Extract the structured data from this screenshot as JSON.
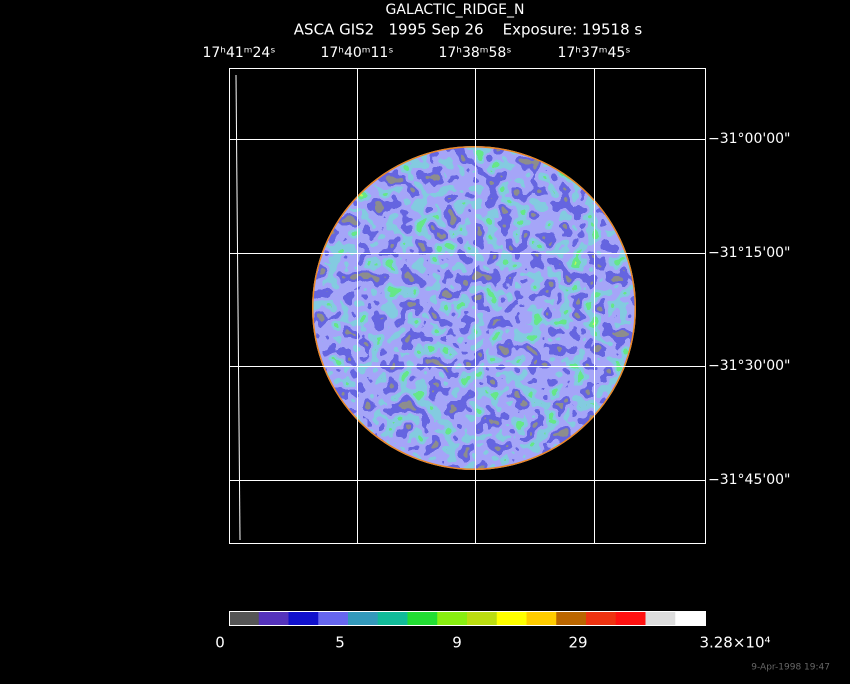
{
  "header": {
    "title": "GALACTIC_RIDGE_N",
    "subtitle": "ASCA GIS2   1995 Sep 26    Exposure: 19518 s"
  },
  "ra_labels": [
    "17ʰ41ᵐ24ˢ",
    "17ʰ40ᵐ11ˢ",
    "17ʰ38ᵐ58ˢ",
    "17ʰ37ᵐ45ˢ"
  ],
  "dec_labels": [
    "−31°00'00\"",
    "−31°15'00\"",
    "−31°30'00\"",
    "−31°45'00\""
  ],
  "colorbar": {
    "colors": [
      "#555555",
      "#5533bb",
      "#1111cc",
      "#6666ee",
      "#3399bb",
      "#11bb99",
      "#22dd33",
      "#88ee11",
      "#bbdd11",
      "#ffff00",
      "#ffcc00",
      "#bb6600",
      "#ee3311",
      "#ff1111",
      "#dddddd",
      "#ffffff"
    ],
    "labels": [
      "0",
      "5",
      "9",
      "29",
      "3.28×10⁴"
    ]
  },
  "timestamp": "9-Apr-1998 19:47"
}
